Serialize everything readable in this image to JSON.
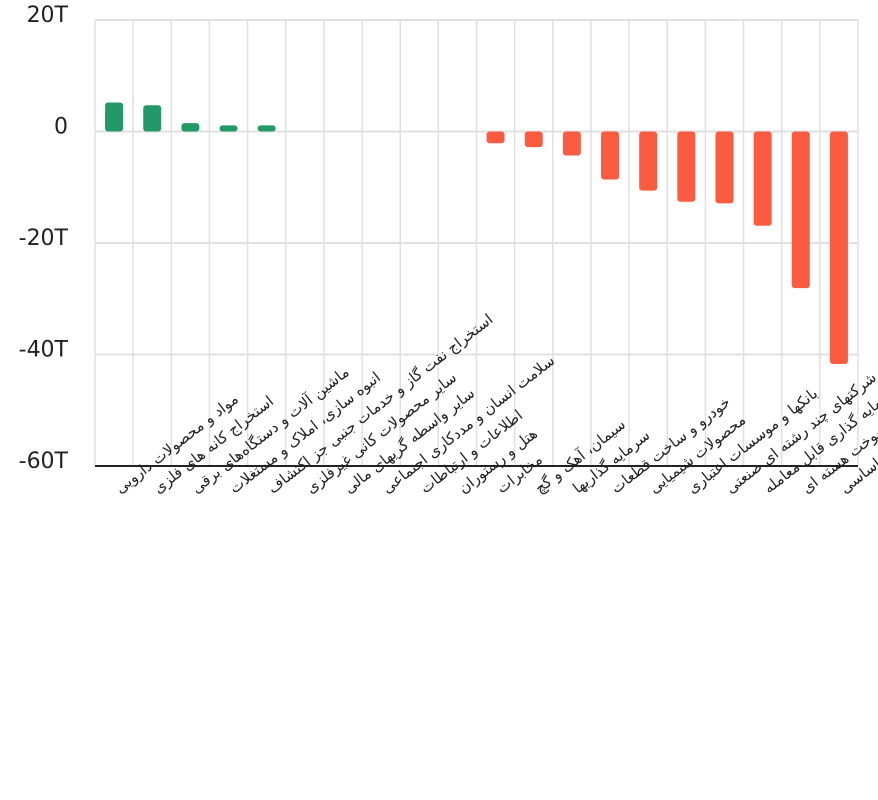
{
  "chart_data": {
    "type": "bar",
    "categories": [
      "مواد و محصولات دارویی",
      "استخراج کانه های فلزی",
      "ماشین آلات و دستگاه‌های برقی",
      "انبوه سازی، املاک و مستغلات",
      "استخراج نفت گاز و خدمات جنبی جز اکتشاف",
      "سایر محصولات کانی غیرفلزی",
      "سایر واسطه گریهای مالی",
      "سلامت انسان و مددکاری اجتماعی",
      "اطلاعات و ارتباطات",
      "هتل و رستوران",
      "مخابرات",
      "سیمان، آهک و گچ",
      "سرمایه گذاریها",
      "خودرو و ساخت قطعات",
      "محصولات شیمیایی",
      "بانکها و موسسات اعتباری",
      "شرکتهای چند رشته ای صنعتی",
      "صندوق سرمایه گذاری قابل معامله",
      "فراورده های نفتی، کک و سوخت هسته ای",
      "فلزات اساسی"
    ],
    "values": [
      5.2,
      4.7,
      1.5,
      1.1,
      1.1,
      0,
      0,
      0,
      0,
      0,
      -2.1,
      -2.8,
      -4.3,
      -8.6,
      -10.6,
      -12.6,
      -12.9,
      -16.9,
      -28.1,
      -41.7
    ],
    "yticks": [
      "20T",
      "0",
      "-20T",
      "-40T",
      "-60T"
    ],
    "ytick_values": [
      20,
      0,
      -20,
      -40,
      -60
    ],
    "ylim": [
      -60,
      20
    ],
    "colors": {
      "positive": "#229966",
      "negative": "#fa5b41",
      "grid": "#e0e0e0",
      "axis": "#222222"
    },
    "grid": true
  }
}
